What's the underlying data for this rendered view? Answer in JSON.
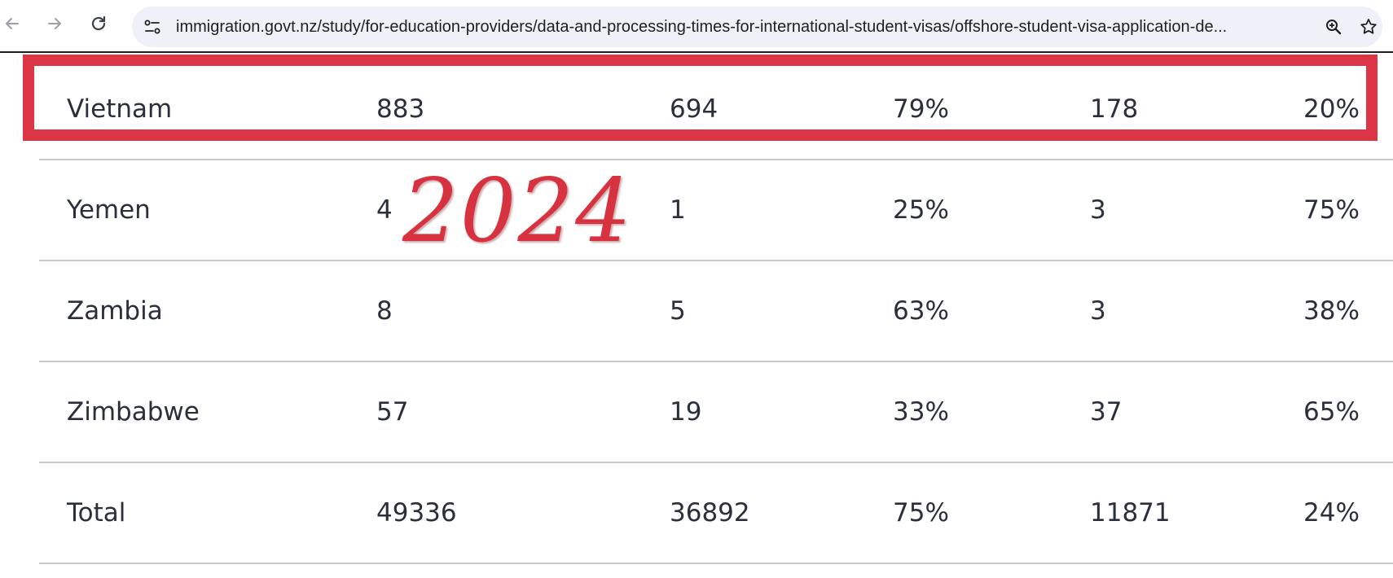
{
  "browser": {
    "url": "immigration.govt.nz/study/for-education-providers/data-and-processing-times-for-international-student-visas/offshore-student-visa-application-de...",
    "icons": {
      "back": "back-arrow-icon",
      "forward": "forward-arrow-icon",
      "reload": "reload-icon",
      "site_info": "site-info-icon",
      "zoom": "zoom-icon",
      "bookmark": "star-icon"
    }
  },
  "table": {
    "rows": [
      {
        "country": "Vietnam",
        "c1": "883",
        "c2": "694",
        "c3": "79%",
        "c4": "178",
        "c5": "20%"
      },
      {
        "country": "Yemen",
        "c1": "4",
        "c2": "1",
        "c3": "25%",
        "c4": "3",
        "c5": "75%"
      },
      {
        "country": "Zambia",
        "c1": "8",
        "c2": "5",
        "c3": "63%",
        "c4": "3",
        "c5": "38%"
      },
      {
        "country": "Zimbabwe",
        "c1": "57",
        "c2": "19",
        "c3": "33%",
        "c4": "37",
        "c5": "65%"
      },
      {
        "country": "Total",
        "c1": "49336",
        "c2": "36892",
        "c3": "75%",
        "c4": "11871",
        "c5": "24%"
      }
    ]
  },
  "annotation": {
    "year": "2024",
    "color": "#dc3545"
  }
}
